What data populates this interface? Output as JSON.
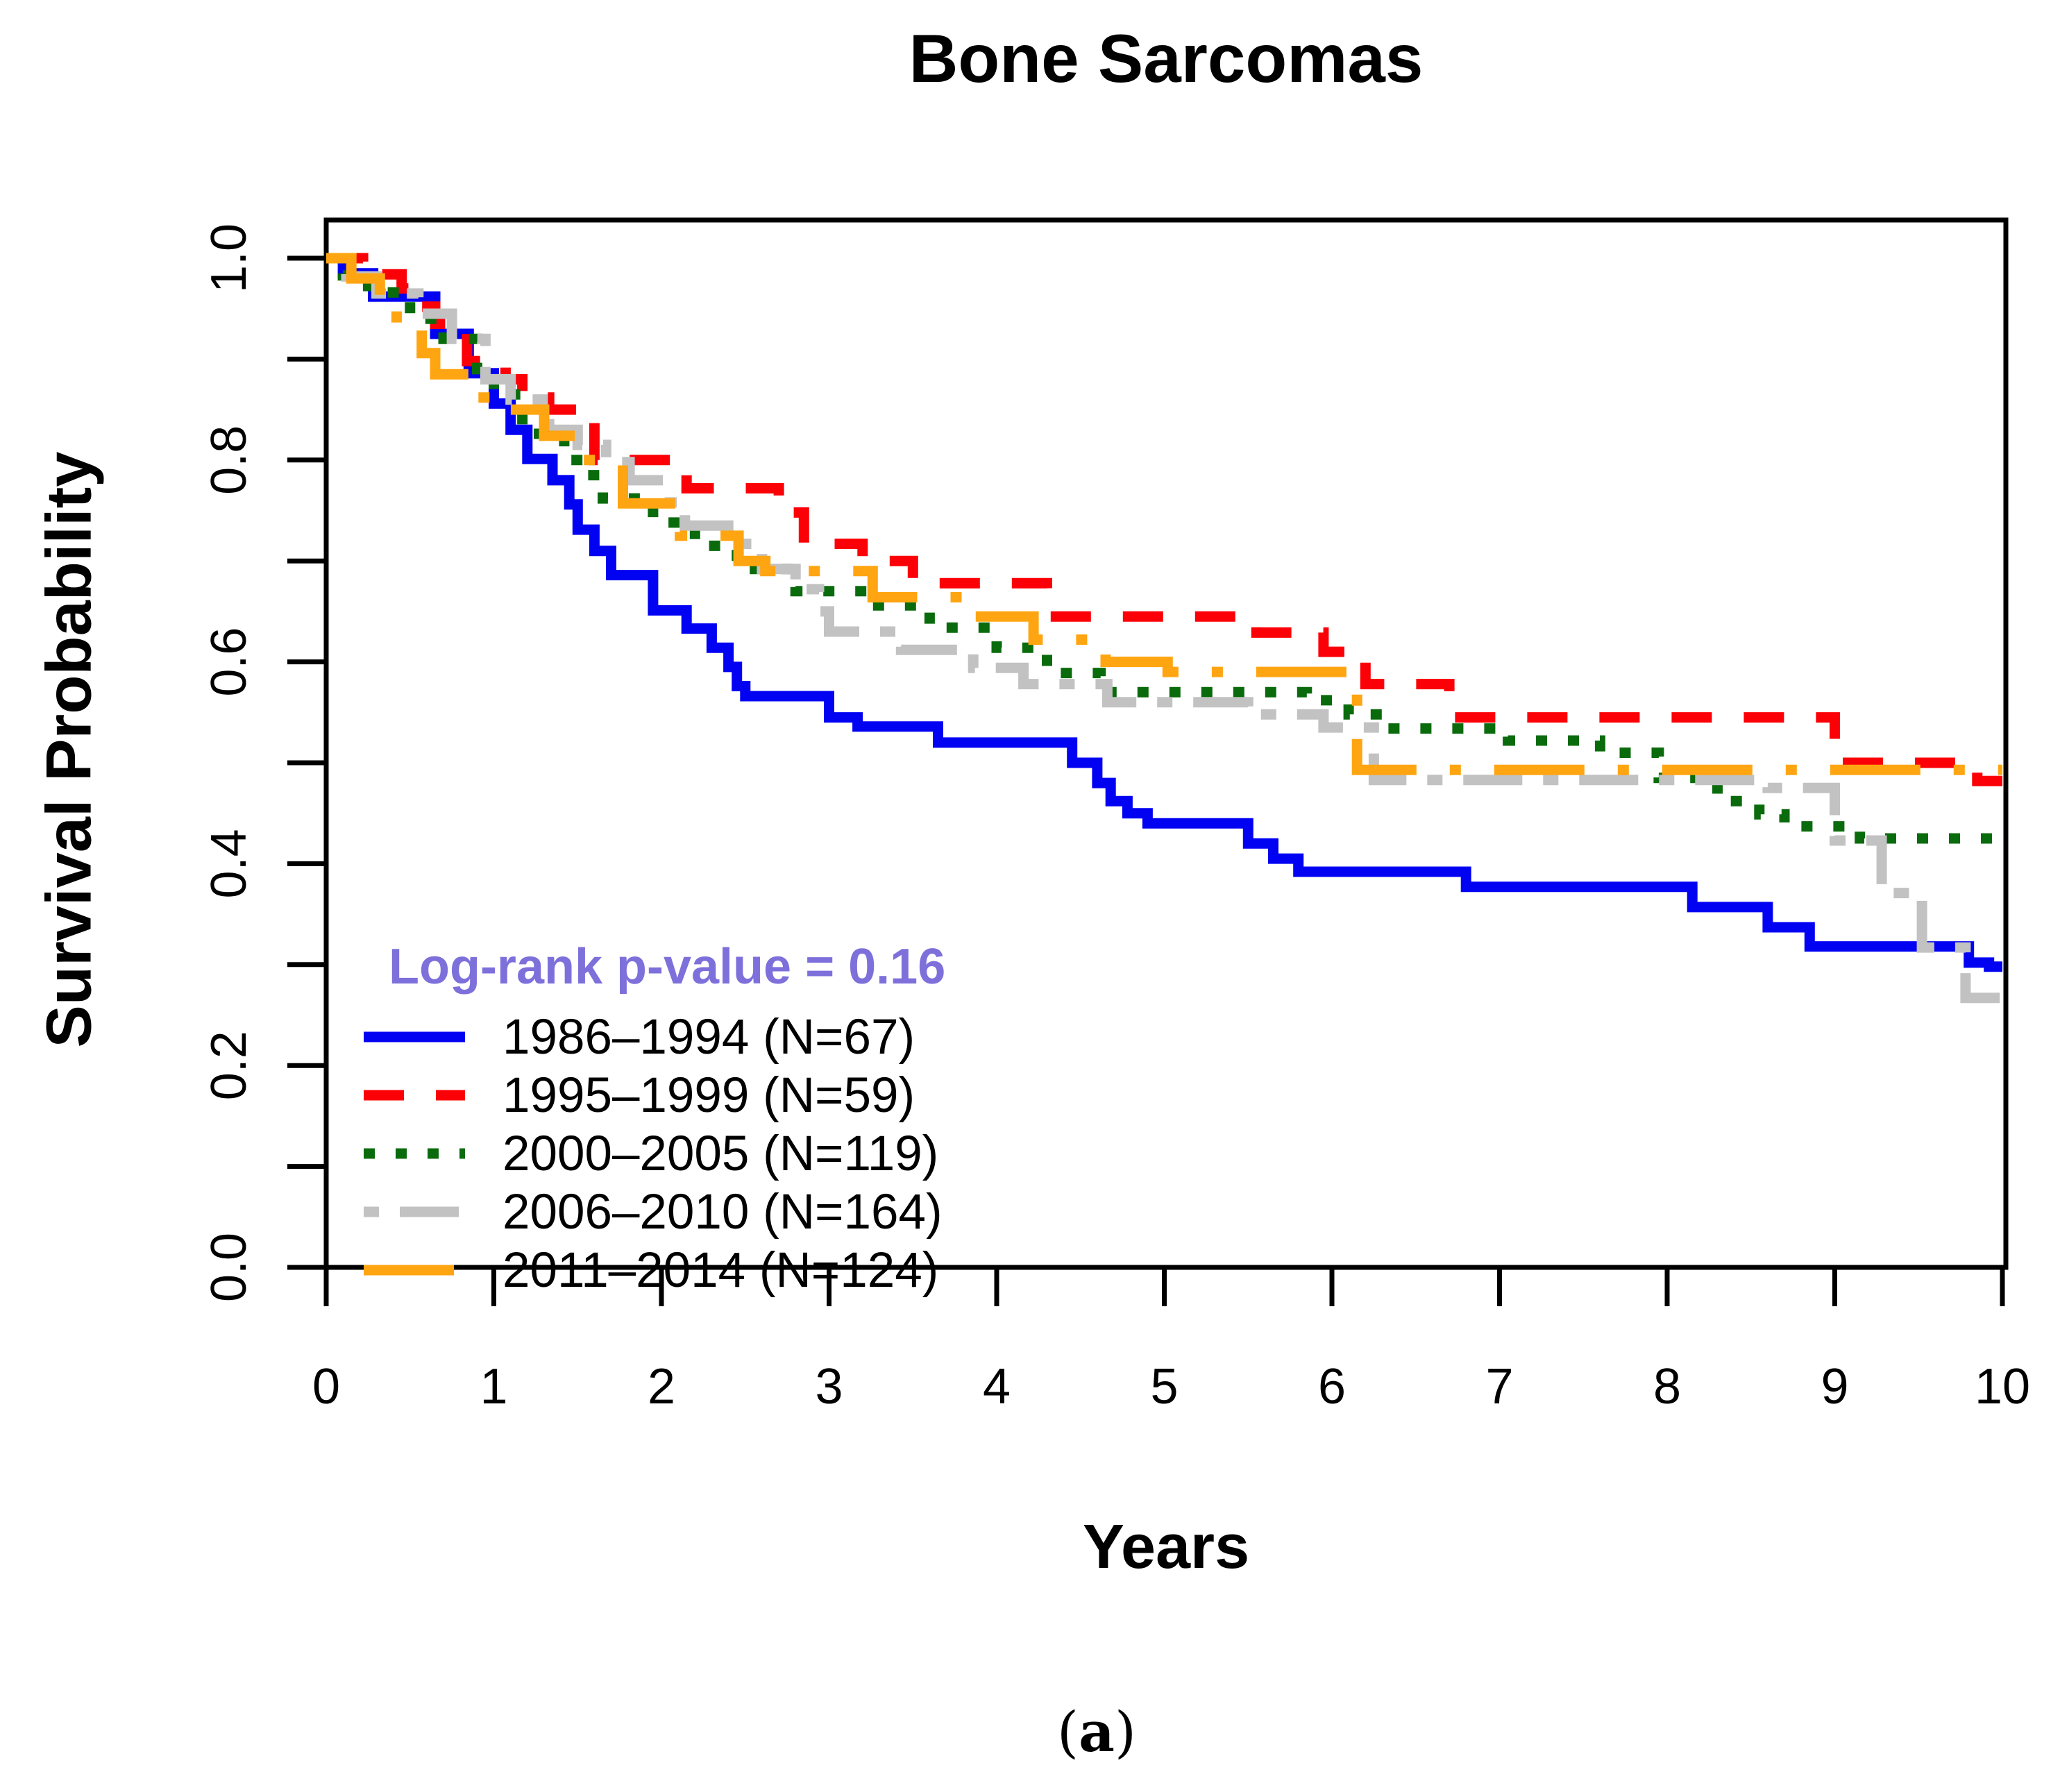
{
  "figure": {
    "title": "Bone Sarcomas",
    "x_axis_label": "Years",
    "y_axis_label": "Survival Probability",
    "caption_prefix": "(",
    "caption_letter": "a",
    "caption_suffix": ")"
  },
  "legend": {
    "p_value_label": "Log-rank p-value = 0.16",
    "p_value_color": "#7D70DB",
    "entries": [
      {
        "label": "1986–1994 (N=67)"
      },
      {
        "label": "1995–1999 (N=59)"
      },
      {
        "label": "2000–2005 (N=119)"
      },
      {
        "label": "2006–2010 (N=164)"
      },
      {
        "label": "2011–2014 (N=124)"
      }
    ]
  },
  "chart_data": {
    "type": "line",
    "subtype": "kaplan-meier-step",
    "title": "Bone Sarcomas",
    "xlabel": "Years",
    "ylabel": "Survival Probability",
    "xlim": [
      0,
      10
    ],
    "ylim": [
      0.0,
      1.0
    ],
    "grid": false,
    "legend_position": "inside-lower-left",
    "log_rank_p_value": 0.16,
    "x_ticks": [
      0,
      1,
      2,
      3,
      4,
      5,
      6,
      7,
      8,
      9,
      10
    ],
    "x_tick_labels": [
      "0",
      "1",
      "2",
      "3",
      "4",
      "5",
      "6",
      "7",
      "8",
      "9",
      "10"
    ],
    "y_ticks": [
      0.0,
      0.1,
      0.2,
      0.3,
      0.4,
      0.5,
      0.6,
      0.7,
      0.8,
      0.9,
      1.0
    ],
    "y_tick_labels": [
      "0.0",
      "",
      "0.2",
      "",
      "0.4",
      "",
      "0.6",
      "",
      "0.8",
      "",
      "1.0"
    ],
    "series": [
      {
        "name": "1986–1994 (N=67)",
        "n": 67,
        "color": "#0202F2",
        "line_style": "solid",
        "dash": "",
        "steps": [
          [
            0,
            1.0
          ],
          [
            0.1,
            0.985
          ],
          [
            0.28,
            0.962
          ],
          [
            0.65,
            0.925
          ],
          [
            0.85,
            0.886
          ],
          [
            1.0,
            0.856
          ],
          [
            1.1,
            0.83
          ],
          [
            1.2,
            0.801
          ],
          [
            1.35,
            0.78
          ],
          [
            1.45,
            0.756
          ],
          [
            1.5,
            0.731
          ],
          [
            1.6,
            0.71
          ],
          [
            1.7,
            0.686
          ],
          [
            1.95,
            0.651
          ],
          [
            2.15,
            0.633
          ],
          [
            2.3,
            0.614
          ],
          [
            2.4,
            0.595
          ],
          [
            2.45,
            0.576
          ],
          [
            2.5,
            0.566
          ],
          [
            3.0,
            0.545
          ],
          [
            3.17,
            0.536
          ],
          [
            3.65,
            0.52
          ],
          [
            4.45,
            0.5
          ],
          [
            4.6,
            0.48
          ],
          [
            4.68,
            0.462
          ],
          [
            4.78,
            0.45
          ],
          [
            4.9,
            0.44
          ],
          [
            5.5,
            0.42
          ],
          [
            5.65,
            0.405
          ],
          [
            5.8,
            0.392
          ],
          [
            6.8,
            0.377
          ],
          [
            8.15,
            0.357
          ],
          [
            8.6,
            0.337
          ],
          [
            8.85,
            0.318
          ],
          [
            9.8,
            0.302
          ],
          [
            9.92,
            0.298
          ],
          [
            10,
            0.298
          ]
        ]
      },
      {
        "name": "1995–1999 (N=59)",
        "n": 59,
        "color": "#FB0006",
        "line_style": "dashed",
        "dash": "58 46",
        "steps": [
          [
            0,
            1.0
          ],
          [
            0.22,
            0.984
          ],
          [
            0.45,
            0.97
          ],
          [
            0.55,
            0.952
          ],
          [
            0.65,
            0.935
          ],
          [
            0.84,
            0.898
          ],
          [
            1.07,
            0.88
          ],
          [
            1.17,
            0.862
          ],
          [
            1.33,
            0.85
          ],
          [
            1.6,
            0.8
          ],
          [
            2.15,
            0.772
          ],
          [
            2.7,
            0.748
          ],
          [
            2.85,
            0.717
          ],
          [
            3.2,
            0.7
          ],
          [
            3.5,
            0.678
          ],
          [
            4.3,
            0.645
          ],
          [
            5.55,
            0.629
          ],
          [
            5.95,
            0.61
          ],
          [
            6.2,
            0.578
          ],
          [
            6.7,
            0.545
          ],
          [
            9.0,
            0.5
          ],
          [
            9.85,
            0.482
          ],
          [
            10,
            0.482
          ]
        ]
      },
      {
        "name": "2000–2005 (N=119)",
        "n": 119,
        "color": "#0A6B0D",
        "line_style": "dotted",
        "dash": "16 30",
        "steps": [
          [
            0,
            1.0
          ],
          [
            0.1,
            0.983
          ],
          [
            0.25,
            0.966
          ],
          [
            0.5,
            0.94
          ],
          [
            0.7,
            0.92
          ],
          [
            0.9,
            0.89
          ],
          [
            1.0,
            0.865
          ],
          [
            1.17,
            0.826
          ],
          [
            1.42,
            0.8
          ],
          [
            1.55,
            0.785
          ],
          [
            1.65,
            0.762
          ],
          [
            1.95,
            0.738
          ],
          [
            2.2,
            0.715
          ],
          [
            2.45,
            0.692
          ],
          [
            2.8,
            0.67
          ],
          [
            3.26,
            0.656
          ],
          [
            3.6,
            0.634
          ],
          [
            4.0,
            0.614
          ],
          [
            4.3,
            0.589
          ],
          [
            4.62,
            0.57
          ],
          [
            5.85,
            0.562
          ],
          [
            6.1,
            0.548
          ],
          [
            6.3,
            0.534
          ],
          [
            7.05,
            0.522
          ],
          [
            7.6,
            0.51
          ],
          [
            7.95,
            0.485
          ],
          [
            8.3,
            0.462
          ],
          [
            8.55,
            0.449
          ],
          [
            8.7,
            0.437
          ],
          [
            9.15,
            0.425
          ],
          [
            10,
            0.425
          ]
        ]
      },
      {
        "name": "2006–2010 (N=164)",
        "n": 164,
        "color": "#C2C2C2",
        "line_style": "twodash",
        "dash": "22 30 85 30",
        "steps": [
          [
            0,
            1.0
          ],
          [
            0.12,
            0.982
          ],
          [
            0.3,
            0.965
          ],
          [
            0.55,
            0.945
          ],
          [
            0.75,
            0.92
          ],
          [
            0.95,
            0.88
          ],
          [
            1.1,
            0.86
          ],
          [
            1.33,
            0.83
          ],
          [
            1.5,
            0.815
          ],
          [
            1.67,
            0.798
          ],
          [
            1.81,
            0.78
          ],
          [
            2.02,
            0.758
          ],
          [
            2.14,
            0.735
          ],
          [
            2.43,
            0.717
          ],
          [
            2.6,
            0.692
          ],
          [
            2.8,
            0.672
          ],
          [
            2.94,
            0.65
          ],
          [
            3.0,
            0.63
          ],
          [
            3.43,
            0.612
          ],
          [
            3.86,
            0.594
          ],
          [
            4.16,
            0.578
          ],
          [
            4.66,
            0.56
          ],
          [
            5.5,
            0.548
          ],
          [
            5.95,
            0.535
          ],
          [
            6.25,
            0.483
          ],
          [
            8.6,
            0.475
          ],
          [
            9.0,
            0.423
          ],
          [
            9.28,
            0.371
          ],
          [
            9.52,
            0.317
          ],
          [
            9.78,
            0.267
          ],
          [
            10,
            0.267
          ]
        ]
      },
      {
        "name": "2011–2014 (N=124)",
        "n": 124,
        "color": "#FFA512",
        "line_style": "longdash-dot",
        "dash": "130 48 16 48",
        "steps": [
          [
            0,
            1.0
          ],
          [
            0.15,
            0.98
          ],
          [
            0.32,
            0.962
          ],
          [
            0.42,
            0.935
          ],
          [
            0.57,
            0.906
          ],
          [
            0.65,
            0.885
          ],
          [
            0.88,
            0.862
          ],
          [
            1.0,
            0.85
          ],
          [
            1.3,
            0.824
          ],
          [
            1.52,
            0.8
          ],
          [
            1.77,
            0.757
          ],
          [
            2.11,
            0.725
          ],
          [
            2.46,
            0.7
          ],
          [
            2.62,
            0.69
          ],
          [
            3.26,
            0.664
          ],
          [
            3.76,
            0.645
          ],
          [
            4.22,
            0.622
          ],
          [
            4.65,
            0.6
          ],
          [
            5.02,
            0.59
          ],
          [
            6.15,
            0.493
          ],
          [
            10,
            0.493
          ]
        ]
      }
    ]
  }
}
